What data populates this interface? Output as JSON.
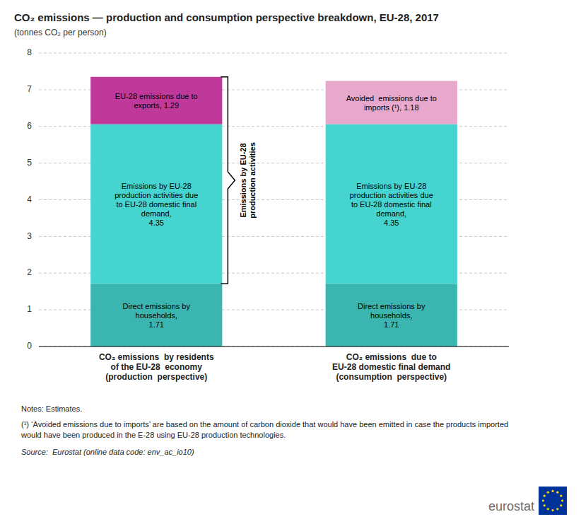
{
  "chart_data": {
    "type": "bar",
    "stacked": true,
    "title": "CO₂ emissions — production and consumption perspective breakdown, EU-28, 2017",
    "subtitle": "(tonnes CO₂ per person)",
    "categories": [
      "CO₂ emissions  by residents\nof the EU-28  economy\n(production  perspective)",
      "CO₂ emissions  due to\nEU-28 domestic final demand\n(consumption  perspective)"
    ],
    "series": [
      {
        "color": "#3ab5b0",
        "values": [
          1.71,
          1.71
        ],
        "value_labels": [
          "Direct emissions by\nhouseholds,\n1.71",
          "Direct emissions by\nhouseholds,\n1.71"
        ]
      },
      {
        "color": "#45d4d0",
        "values": [
          4.35,
          4.35
        ],
        "value_labels": [
          "Emissions by EU-28\nproduction activities due\nto EU-28 domestic final\ndemand,\n4.35",
          "Emissions by EU-28\nproduction activities due\nto EU-28 domestic final\ndemand,\n4.35"
        ]
      },
      {
        "colors": [
          "#c0399a",
          "#e8a8cc"
        ],
        "values": [
          1.29,
          1.18
        ],
        "value_labels": [
          "EU-28 emissions due to\nexports, 1.29",
          "Avoided  emissions due to\nimports (¹), 1.18"
        ]
      }
    ],
    "ylim": [
      0,
      8
    ],
    "yticks": [
      0,
      1,
      2,
      3,
      4,
      5,
      6,
      7,
      8
    ],
    "grid": true,
    "data_labels": true,
    "annotations": [
      "Emissions by EU-28\nproduction activities",
      "Notes: Estimates.",
      "(¹) ‘Avoided emissions due to imports’ are based on the amount of carbon dioxide that would have been emitted in case the products imported",
      "would have been produced in the E-28 using EU-28 production technologies.",
      "Source:  Eurostat (online data code: env_ac_io10)",
      "eurostat"
    ]
  }
}
